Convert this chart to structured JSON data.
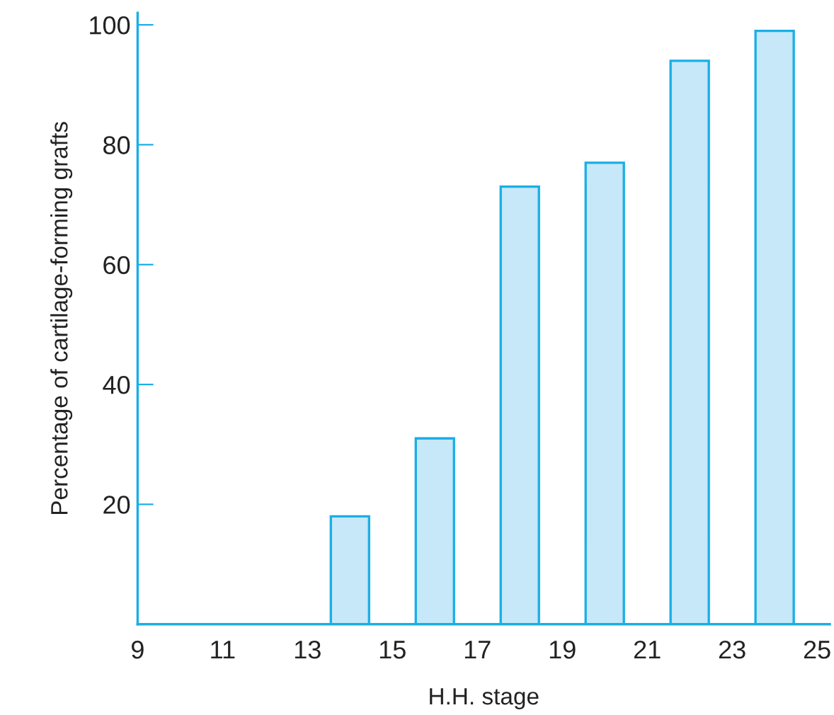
{
  "chart_data": {
    "type": "bar",
    "xlabel": "H.H. stage",
    "ylabel": "Percentage of cartilage-forming grafts",
    "x": [
      14,
      16,
      18,
      20,
      22,
      24
    ],
    "series": [
      {
        "color": "#c6e8f8",
        "values": [
          18,
          31,
          73,
          77,
          94,
          99
        ]
      }
    ],
    "xlim": [
      9,
      25.3
    ],
    "xticks": [
      9,
      11,
      13,
      15,
      17,
      19,
      21,
      23,
      25
    ],
    "ylim": [
      0,
      102
    ],
    "yticks": [
      20,
      40,
      60,
      80,
      100
    ],
    "grid": false,
    "legend": false
  }
}
